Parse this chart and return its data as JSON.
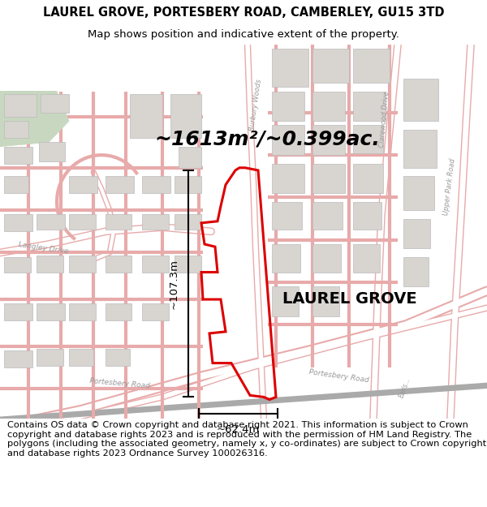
{
  "title": "LAUREL GROVE, PORTESBERY ROAD, CAMBERLEY, GU15 3TD",
  "subtitle": "Map shows position and indicative extent of the property.",
  "area_text": "~1613m²/~0.399ac.",
  "label_text": "LAUREL GROVE",
  "dim_h": "~107.3m",
  "dim_w": "~62.4m",
  "footer": "Contains OS data © Crown copyright and database right 2021. This information is subject to Crown copyright and database rights 2023 and is reproduced with the permission of HM Land Registry. The polygons (including the associated geometry, namely x, y co-ordinates) are subject to Crown copyright and database rights 2023 Ordnance Survey 100026316.",
  "map_bg": "#ffffff",
  "title_fontsize": 10.5,
  "subtitle_fontsize": 9.5,
  "area_fontsize": 18,
  "label_fontsize": 14,
  "footer_fontsize": 8.2,
  "road_color": "#e8aaaa",
  "building_color": "#d8d4d0",
  "building_edge": "#bbbbbb",
  "plot_color": "#dd0000",
  "green_color": "#c8d8c0",
  "dim_color": "#111111",
  "road_label_color": "#999999"
}
